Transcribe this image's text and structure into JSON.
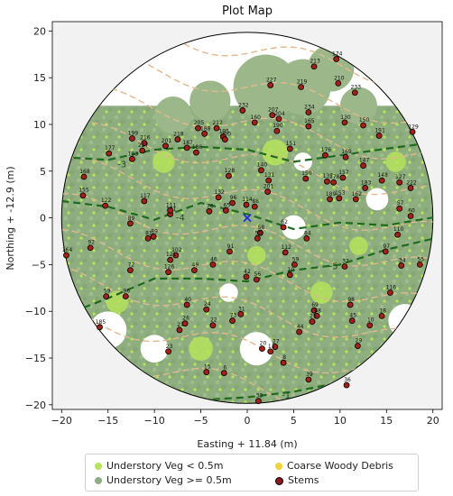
{
  "chart_data": {
    "type": "scatter",
    "title": "Plot Map",
    "xlabel": "Easting + 11.84 (m)",
    "ylabel": "Northing + -12.9 (m)",
    "xlim": [
      -21,
      21
    ],
    "ylim": [
      -20.5,
      21
    ],
    "xticks": [
      "−20",
      "−15",
      "−10",
      "−5",
      "0",
      "5",
      "10",
      "15",
      "20"
    ],
    "yticks": [
      "20",
      "15",
      "10",
      "5",
      "0",
      "−5",
      "−10",
      "−15",
      "−20"
    ],
    "xtick_values": [
      -20,
      -15,
      -10,
      -5,
      0,
      5,
      10,
      15,
      20
    ],
    "ytick_values": [
      20,
      15,
      10,
      5,
      0,
      -5,
      -10,
      -15,
      -20
    ],
    "plot_radius": 20,
    "center_marker": "blue-x",
    "contour_labels": [
      {
        "label": "-3",
        "x": -13.5,
        "y": 5.7
      },
      {
        "label": "-4",
        "x": -7.2,
        "y": 0.0
      },
      {
        "label": "-5",
        "x": 9.3,
        "y": -5.2
      },
      {
        "label": "-1",
        "x": 4.2,
        "y": -19.0
      }
    ],
    "legend": [
      {
        "label": "Understory Veg < 0.5m",
        "color": "#b5e35a"
      },
      {
        "label": "Coarse Woody Debris",
        "color": "#f2d23c"
      },
      {
        "label": "Understory Veg >= 0.5m",
        "color": "#8fae80"
      },
      {
        "label": "Stems",
        "color": "#8b1a1a"
      }
    ],
    "stems": [
      {
        "id": "174",
        "x": 9.6,
        "y": 17.0
      },
      {
        "id": "213",
        "x": 7.2,
        "y": 16.2
      },
      {
        "id": "210",
        "x": 9.8,
        "y": 14.4
      },
      {
        "id": "233",
        "x": 11.6,
        "y": 13.4
      },
      {
        "id": "227",
        "x": 2.5,
        "y": 14.2
      },
      {
        "id": "219",
        "x": 5.8,
        "y": 14.0
      },
      {
        "id": "232",
        "x": -0.5,
        "y": 11.5
      },
      {
        "id": "207",
        "x": 2.7,
        "y": 11.0
      },
      {
        "id": "204",
        "x": 3.4,
        "y": 10.6
      },
      {
        "id": "234",
        "x": 6.6,
        "y": 11.3
      },
      {
        "id": "160",
        "x": 0.8,
        "y": 10.2
      },
      {
        "id": "190",
        "x": 3.2,
        "y": 9.3
      },
      {
        "id": "165",
        "x": 6.6,
        "y": 9.8
      },
      {
        "id": "150",
        "x": 12.5,
        "y": 9.9
      },
      {
        "id": "130",
        "x": 10.5,
        "y": 10.2
      },
      {
        "id": "129",
        "x": 17.8,
        "y": 9.2
      },
      {
        "id": "191",
        "x": 14.2,
        "y": 8.8
      },
      {
        "id": "205",
        "x": -5.3,
        "y": 9.6
      },
      {
        "id": "212",
        "x": -3.3,
        "y": 9.6
      },
      {
        "id": "188",
        "x": -4.6,
        "y": 9.0
      },
      {
        "id": "195",
        "x": -2.6,
        "y": 8.7
      },
      {
        "id": "200",
        "x": -2.4,
        "y": 8.4
      },
      {
        "id": "218",
        "x": -7.5,
        "y": 8.4
      },
      {
        "id": "199",
        "x": -12.4,
        "y": 8.5
      },
      {
        "id": "216",
        "x": -11.1,
        "y": 8.0
      },
      {
        "id": "201",
        "x": -8.8,
        "y": 7.7
      },
      {
        "id": "187",
        "x": -6.5,
        "y": 7.5
      },
      {
        "id": "177",
        "x": -14.9,
        "y": 6.9
      },
      {
        "id": "193",
        "x": -12.4,
        "y": 6.3
      },
      {
        "id": "227",
        "x": -11.3,
        "y": 7.2
      },
      {
        "id": "151",
        "x": 4.6,
        "y": 7.4
      },
      {
        "id": "186",
        "x": -5.5,
        "y": 7.0
      },
      {
        "id": "176",
        "x": 8.4,
        "y": 6.7
      },
      {
        "id": "169",
        "x": 10.6,
        "y": 6.5
      },
      {
        "id": "147",
        "x": 12.5,
        "y": 5.6
      },
      {
        "id": "168",
        "x": -17.6,
        "y": 4.4
      },
      {
        "id": "128",
        "x": -2.0,
        "y": 4.5
      },
      {
        "id": "140",
        "x": 1.5,
        "y": 5.1
      },
      {
        "id": "131",
        "x": 2.3,
        "y": 4.0
      },
      {
        "id": "157",
        "x": 10.3,
        "y": 4.3
      },
      {
        "id": "178",
        "x": 9.3,
        "y": 3.8
      },
      {
        "id": "150",
        "x": 6.3,
        "y": 4.2
      },
      {
        "id": "137",
        "x": 8.6,
        "y": 3.9
      },
      {
        "id": "148",
        "x": 14.5,
        "y": 4.0
      },
      {
        "id": "183",
        "x": 12.7,
        "y": 3.2
      },
      {
        "id": "127",
        "x": 16.4,
        "y": 3.8
      },
      {
        "id": "222",
        "x": 17.6,
        "y": 3.2
      },
      {
        "id": "201",
        "x": 2.2,
        "y": 2.8
      },
      {
        "id": "155",
        "x": -17.7,
        "y": 2.4
      },
      {
        "id": "122",
        "x": -15.3,
        "y": 1.3
      },
      {
        "id": "117",
        "x": -11.1,
        "y": 1.8
      },
      {
        "id": "132",
        "x": -3.1,
        "y": 2.2
      },
      {
        "id": "114",
        "x": -0.1,
        "y": 1.4
      },
      {
        "id": "88",
        "x": 0.8,
        "y": 1.2
      },
      {
        "id": "65",
        "x": -2.3,
        "y": 0.8
      },
      {
        "id": "96",
        "x": -1.6,
        "y": 1.6
      },
      {
        "id": "189",
        "x": 8.9,
        "y": 2.0
      },
      {
        "id": "153",
        "x": 9.9,
        "y": 2.1
      },
      {
        "id": "162",
        "x": 11.7,
        "y": 2.0
      },
      {
        "id": "57",
        "x": 16.4,
        "y": 1.0
      },
      {
        "id": "60",
        "x": 17.6,
        "y": 0.2
      },
      {
        "id": "101",
        "x": -8.3,
        "y": 0.4
      },
      {
        "id": "111",
        "x": -8.3,
        "y": 0.8
      },
      {
        "id": "76",
        "x": -4.1,
        "y": 0.7
      },
      {
        "id": "89",
        "x": -12.6,
        "y": -0.6
      },
      {
        "id": "62",
        "x": 3.9,
        "y": -1.0
      },
      {
        "id": "58",
        "x": 1.4,
        "y": -1.6
      },
      {
        "id": "50",
        "x": 1.1,
        "y": -2.2
      },
      {
        "id": "84",
        "x": 6.4,
        "y": -2.2
      },
      {
        "id": "110",
        "x": 16.2,
        "y": -1.8
      },
      {
        "id": "92",
        "x": -16.9,
        "y": -3.2
      },
      {
        "id": "89",
        "x": -10.1,
        "y": -2.0
      },
      {
        "id": "81",
        "x": -10.7,
        "y": -2.2
      },
      {
        "id": "91",
        "x": -1.9,
        "y": -3.6
      },
      {
        "id": "112",
        "x": 4.1,
        "y": -3.7
      },
      {
        "id": "97",
        "x": 14.9,
        "y": -3.6
      },
      {
        "id": "164",
        "x": -19.5,
        "y": -4.0
      },
      {
        "id": "102",
        "x": -7.7,
        "y": -4.0
      },
      {
        "id": "121",
        "x": -8.3,
        "y": -4.5
      },
      {
        "id": "46",
        "x": -3.7,
        "y": -5.0
      },
      {
        "id": "59",
        "x": 5.1,
        "y": -5.0
      },
      {
        "id": "37",
        "x": 10.5,
        "y": -5.2
      },
      {
        "id": "34",
        "x": 16.6,
        "y": -5.1
      },
      {
        "id": "55",
        "x": 18.6,
        "y": -5.0
      },
      {
        "id": "72",
        "x": -12.6,
        "y": -5.6
      },
      {
        "id": "126",
        "x": -8.5,
        "y": -5.8
      },
      {
        "id": "49",
        "x": -5.7,
        "y": -5.6
      },
      {
        "id": "42",
        "x": -0.1,
        "y": -6.3
      },
      {
        "id": "56",
        "x": 1.0,
        "y": -6.6
      },
      {
        "id": "10",
        "x": 4.6,
        "y": -6.1
      },
      {
        "id": "116",
        "x": 15.4,
        "y": -8.0
      },
      {
        "id": "59",
        "x": -15.2,
        "y": -8.4
      },
      {
        "id": "96",
        "x": -13.1,
        "y": -8.4
      },
      {
        "id": "40",
        "x": -6.5,
        "y": -9.3
      },
      {
        "id": "24",
        "x": -4.4,
        "y": -9.8
      },
      {
        "id": "98",
        "x": 11.1,
        "y": -9.3
      },
      {
        "id": "69",
        "x": 7.2,
        "y": -9.9
      },
      {
        "id": "68",
        "x": 7.5,
        "y": -10.5
      },
      {
        "id": "31",
        "x": -0.7,
        "y": -10.3
      },
      {
        "id": "18",
        "x": 14.5,
        "y": -10.5
      },
      {
        "id": "185",
        "x": -15.9,
        "y": -11.7
      },
      {
        "id": "26",
        "x": -6.7,
        "y": -11.3
      },
      {
        "id": "22",
        "x": -3.7,
        "y": -11.5
      },
      {
        "id": "73",
        "x": -1.6,
        "y": -11.0
      },
      {
        "id": "25",
        "x": 7.0,
        "y": -11.1
      },
      {
        "id": "45",
        "x": 11.3,
        "y": -11.0
      },
      {
        "id": "10",
        "x": 13.2,
        "y": -11.5
      },
      {
        "id": "44",
        "x": 5.6,
        "y": -12.2
      },
      {
        "id": "21",
        "x": -7.3,
        "y": -12.0
      },
      {
        "id": "29",
        "x": 11.9,
        "y": -13.7
      },
      {
        "id": "23",
        "x": -8.5,
        "y": -14.3
      },
      {
        "id": "20",
        "x": 1.6,
        "y": -14.0
      },
      {
        "id": "27",
        "x": 3.0,
        "y": -13.8
      },
      {
        "id": "11",
        "x": 2.5,
        "y": -14.3
      },
      {
        "id": "8",
        "x": 3.9,
        "y": -15.5
      },
      {
        "id": "15",
        "x": -4.4,
        "y": -16.5
      },
      {
        "id": "6",
        "x": -2.5,
        "y": -16.6
      },
      {
        "id": "39",
        "x": 6.6,
        "y": -17.3
      },
      {
        "id": "36",
        "x": 10.7,
        "y": -17.9
      },
      {
        "id": "33",
        "x": 1.2,
        "y": -19.6
      }
    ]
  }
}
